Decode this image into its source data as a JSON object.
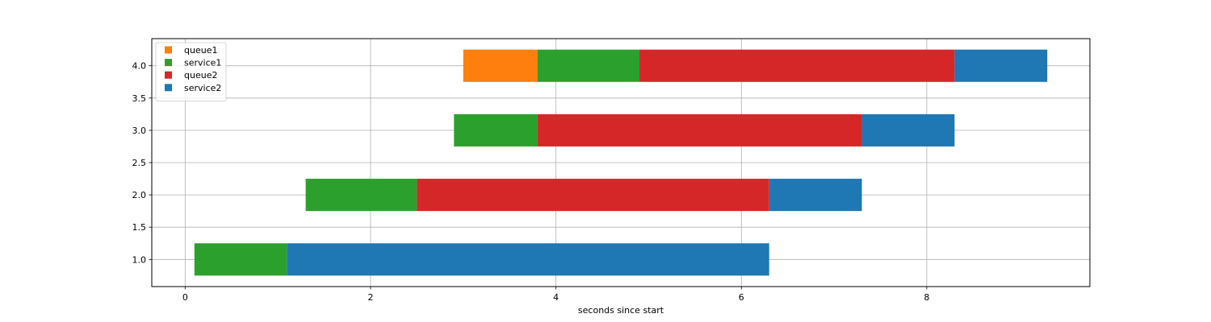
{
  "chart_data": {
    "type": "bar",
    "orientation": "horizontal",
    "stacked": true,
    "title": "",
    "xlabel": "seconds since start",
    "ylabel": "",
    "xlim": [
      -0.36,
      9.76
    ],
    "ylim": [
      0.58,
      4.42
    ],
    "xticks": [
      0,
      2,
      4,
      6,
      8
    ],
    "yticks": [
      1.0,
      1.5,
      2.0,
      2.5,
      3.0,
      3.5,
      4.0
    ],
    "xtick_labels": [
      "0",
      "2",
      "4",
      "6",
      "8"
    ],
    "ytick_labels": [
      "1.0",
      "1.5",
      "2.0",
      "2.5",
      "3.0",
      "3.5",
      "4.0"
    ],
    "bar_height": 0.5,
    "grid": true,
    "legend_position": "upper-left",
    "series": [
      {
        "name": "queue1",
        "color": "#ff7f0e",
        "segments": [
          {
            "y": 4,
            "start": 3.0,
            "end": 3.8
          }
        ]
      },
      {
        "name": "service1",
        "color": "#2ca02c",
        "segments": [
          {
            "y": 1,
            "start": 0.1,
            "end": 1.1
          },
          {
            "y": 2,
            "start": 1.3,
            "end": 2.5
          },
          {
            "y": 3,
            "start": 2.9,
            "end": 3.8
          },
          {
            "y": 4,
            "start": 3.8,
            "end": 4.9
          }
        ]
      },
      {
        "name": "queue2",
        "color": "#d62728",
        "segments": [
          {
            "y": 2,
            "start": 2.5,
            "end": 6.3
          },
          {
            "y": 3,
            "start": 3.8,
            "end": 7.3
          },
          {
            "y": 4,
            "start": 4.9,
            "end": 8.3
          }
        ]
      },
      {
        "name": "service2",
        "color": "#1f77b4",
        "segments": [
          {
            "y": 1,
            "start": 1.1,
            "end": 6.3
          },
          {
            "y": 2,
            "start": 6.3,
            "end": 7.3
          },
          {
            "y": 3,
            "start": 7.3,
            "end": 8.3
          },
          {
            "y": 4,
            "start": 8.3,
            "end": 9.3
          }
        ]
      }
    ]
  }
}
